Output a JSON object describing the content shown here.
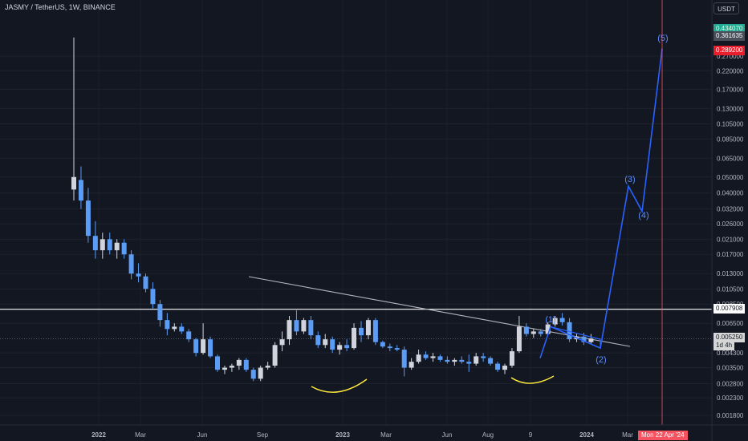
{
  "header": {
    "symbol": "JASMY / TetherUS, 1W, BINANCE",
    "currency": "USDT"
  },
  "price_tags": {
    "high": "0.434070",
    "target": "0.361635",
    "red": "0.289200",
    "resistance": "0.007908",
    "current": "0.005250",
    "countdown": "1d 4h"
  },
  "date_badge": "Mon 22 Apr '24",
  "colors": {
    "background": "#131722",
    "candle_up": "#d1d4dc",
    "candle_down": "#5b9cf6",
    "projection": "#2962ff",
    "trendline": "#b2b5be",
    "horizontal_line": "#ffffff",
    "smile": "#ffeb3b",
    "date_marker": "#f7525f"
  },
  "chart_data": {
    "type": "candlestick",
    "title": "JASMY / TetherUS, 1W, BINANCE",
    "scale": "log",
    "yticks": [
      "0.270000",
      "0.220000",
      "0.170000",
      "0.130000",
      "0.105000",
      "0.085000",
      "0.065000",
      "0.050000",
      "0.040000",
      "0.032000",
      "0.026000",
      "0.021000",
      "0.017000",
      "0.013000",
      "0.010500",
      "0.008500",
      "0.006500",
      "0.004300",
      "0.003500",
      "0.002800",
      "0.002300",
      "0.001800"
    ],
    "xticks": [
      "2022",
      "Mar",
      "Jun",
      "Sep",
      "2023",
      "Mar",
      "Jun",
      "Aug",
      "9",
      "2024",
      "Mar"
    ],
    "candles": [
      {
        "o": 0.042,
        "h": 0.35,
        "l": 0.036,
        "c": 0.05
      },
      {
        "o": 0.048,
        "h": 0.058,
        "l": 0.032,
        "c": 0.036
      },
      {
        "o": 0.036,
        "h": 0.043,
        "l": 0.02,
        "c": 0.022
      },
      {
        "o": 0.022,
        "h": 0.027,
        "l": 0.016,
        "c": 0.018
      },
      {
        "o": 0.018,
        "h": 0.023,
        "l": 0.016,
        "c": 0.021
      },
      {
        "o": 0.021,
        "h": 0.023,
        "l": 0.017,
        "c": 0.018
      },
      {
        "o": 0.018,
        "h": 0.021,
        "l": 0.016,
        "c": 0.02
      },
      {
        "o": 0.02,
        "h": 0.021,
        "l": 0.016,
        "c": 0.017
      },
      {
        "o": 0.017,
        "h": 0.018,
        "l": 0.012,
        "c": 0.013
      },
      {
        "o": 0.013,
        "h": 0.015,
        "l": 0.0115,
        "c": 0.0125
      },
      {
        "o": 0.0125,
        "h": 0.013,
        "l": 0.01,
        "c": 0.0105
      },
      {
        "o": 0.0105,
        "h": 0.0115,
        "l": 0.008,
        "c": 0.0085
      },
      {
        "o": 0.0085,
        "h": 0.009,
        "l": 0.0062,
        "c": 0.0068
      },
      {
        "o": 0.0068,
        "h": 0.0075,
        "l": 0.0055,
        "c": 0.006
      },
      {
        "o": 0.006,
        "h": 0.0065,
        "l": 0.0058,
        "c": 0.0062
      },
      {
        "o": 0.0062,
        "h": 0.0065,
        "l": 0.0056,
        "c": 0.0058
      },
      {
        "o": 0.0058,
        "h": 0.006,
        "l": 0.005,
        "c": 0.0052
      },
      {
        "o": 0.0052,
        "h": 0.0053,
        "l": 0.0041,
        "c": 0.0043
      },
      {
        "o": 0.0043,
        "h": 0.0065,
        "l": 0.0042,
        "c": 0.0052
      },
      {
        "o": 0.0052,
        "h": 0.0054,
        "l": 0.004,
        "c": 0.0041
      },
      {
        "o": 0.0041,
        "h": 0.0042,
        "l": 0.0033,
        "c": 0.0034
      },
      {
        "o": 0.0034,
        "h": 0.0036,
        "l": 0.0032,
        "c": 0.0035
      },
      {
        "o": 0.0035,
        "h": 0.0037,
        "l": 0.0033,
        "c": 0.0036
      },
      {
        "o": 0.0036,
        "h": 0.004,
        "l": 0.0034,
        "c": 0.0039
      },
      {
        "o": 0.0039,
        "h": 0.004,
        "l": 0.0033,
        "c": 0.0034
      },
      {
        "o": 0.0034,
        "h": 0.0035,
        "l": 0.0029,
        "c": 0.003
      },
      {
        "o": 0.003,
        "h": 0.0036,
        "l": 0.0029,
        "c": 0.0035
      },
      {
        "o": 0.0035,
        "h": 0.0038,
        "l": 0.0034,
        "c": 0.0036
      },
      {
        "o": 0.0036,
        "h": 0.005,
        "l": 0.0035,
        "c": 0.0048
      },
      {
        "o": 0.0048,
        "h": 0.0058,
        "l": 0.0044,
        "c": 0.0052
      },
      {
        "o": 0.0052,
        "h": 0.0072,
        "l": 0.0048,
        "c": 0.0068
      },
      {
        "o": 0.0068,
        "h": 0.0078,
        "l": 0.0055,
        "c": 0.0058
      },
      {
        "o": 0.0058,
        "h": 0.007,
        "l": 0.0056,
        "c": 0.0068
      },
      {
        "o": 0.0068,
        "h": 0.0072,
        "l": 0.0052,
        "c": 0.0055
      },
      {
        "o": 0.0055,
        "h": 0.0058,
        "l": 0.0046,
        "c": 0.0048
      },
      {
        "o": 0.0048,
        "h": 0.0056,
        "l": 0.0046,
        "c": 0.0052
      },
      {
        "o": 0.0052,
        "h": 0.0054,
        "l": 0.0043,
        "c": 0.0045
      },
      {
        "o": 0.0045,
        "h": 0.005,
        "l": 0.0042,
        "c": 0.0048
      },
      {
        "o": 0.0048,
        "h": 0.0052,
        "l": 0.0044,
        "c": 0.0046
      },
      {
        "o": 0.0046,
        "h": 0.0065,
        "l": 0.0045,
        "c": 0.0061
      },
      {
        "o": 0.0061,
        "h": 0.0067,
        "l": 0.005,
        "c": 0.0055
      },
      {
        "o": 0.0055,
        "h": 0.007,
        "l": 0.0052,
        "c": 0.0068
      },
      {
        "o": 0.0068,
        "h": 0.007,
        "l": 0.0048,
        "c": 0.005
      },
      {
        "o": 0.005,
        "h": 0.0051,
        "l": 0.0046,
        "c": 0.0047
      },
      {
        "o": 0.0047,
        "h": 0.0049,
        "l": 0.0044,
        "c": 0.0046
      },
      {
        "o": 0.0046,
        "h": 0.0048,
        "l": 0.0044,
        "c": 0.0045
      },
      {
        "o": 0.0045,
        "h": 0.0047,
        "l": 0.0031,
        "c": 0.0035
      },
      {
        "o": 0.0035,
        "h": 0.004,
        "l": 0.0034,
        "c": 0.0038
      },
      {
        "o": 0.0038,
        "h": 0.0045,
        "l": 0.0037,
        "c": 0.0042
      },
      {
        "o": 0.0042,
        "h": 0.0044,
        "l": 0.0039,
        "c": 0.004
      },
      {
        "o": 0.004,
        "h": 0.0043,
        "l": 0.0038,
        "c": 0.0041
      },
      {
        "o": 0.0041,
        "h": 0.0042,
        "l": 0.0038,
        "c": 0.0039
      },
      {
        "o": 0.0039,
        "h": 0.0041,
        "l": 0.0037,
        "c": 0.0038
      },
      {
        "o": 0.0038,
        "h": 0.004,
        "l": 0.0036,
        "c": 0.0039
      },
      {
        "o": 0.0039,
        "h": 0.0041,
        "l": 0.0037,
        "c": 0.0038
      },
      {
        "o": 0.0038,
        "h": 0.0042,
        "l": 0.0033,
        "c": 0.0037
      },
      {
        "o": 0.0037,
        "h": 0.0043,
        "l": 0.0036,
        "c": 0.0041
      },
      {
        "o": 0.0041,
        "h": 0.0043,
        "l": 0.0038,
        "c": 0.004
      },
      {
        "o": 0.004,
        "h": 0.0041,
        "l": 0.0036,
        "c": 0.0037
      },
      {
        "o": 0.0037,
        "h": 0.0038,
        "l": 0.0033,
        "c": 0.0034
      },
      {
        "o": 0.0034,
        "h": 0.0037,
        "l": 0.0032,
        "c": 0.0036
      },
      {
        "o": 0.0036,
        "h": 0.0046,
        "l": 0.0035,
        "c": 0.0044
      },
      {
        "o": 0.0044,
        "h": 0.0072,
        "l": 0.0043,
        "c": 0.0062
      },
      {
        "o": 0.0062,
        "h": 0.0065,
        "l": 0.0054,
        "c": 0.0056
      },
      {
        "o": 0.0056,
        "h": 0.006,
        "l": 0.0053,
        "c": 0.0058
      },
      {
        "o": 0.0058,
        "h": 0.006,
        "l": 0.0054,
        "c": 0.0056
      },
      {
        "o": 0.0056,
        "h": 0.0066,
        "l": 0.0055,
        "c": 0.0064
      },
      {
        "o": 0.0064,
        "h": 0.0072,
        "l": 0.0062,
        "c": 0.007
      },
      {
        "o": 0.007,
        "h": 0.0075,
        "l": 0.0063,
        "c": 0.0066
      },
      {
        "o": 0.0066,
        "h": 0.007,
        "l": 0.005,
        "c": 0.0052
      },
      {
        "o": 0.0052,
        "h": 0.0056,
        "l": 0.005,
        "c": 0.0054
      },
      {
        "o": 0.0054,
        "h": 0.0057,
        "l": 0.0048,
        "c": 0.005
      },
      {
        "o": 0.005,
        "h": 0.0056,
        "l": 0.0049,
        "c": 0.00525
      }
    ],
    "annotations": [
      {
        "label": "(1)",
        "value": 0.0062
      },
      {
        "label": "(2)",
        "value": 0.0046
      },
      {
        "label": "(3)",
        "value": 0.044
      },
      {
        "label": "(4)",
        "value": 0.031
      },
      {
        "label": "(5)",
        "value": 0.3
      }
    ],
    "resistance": 0.007908,
    "current": 0.00525,
    "ylim": [
      0.0016,
      0.45
    ]
  }
}
